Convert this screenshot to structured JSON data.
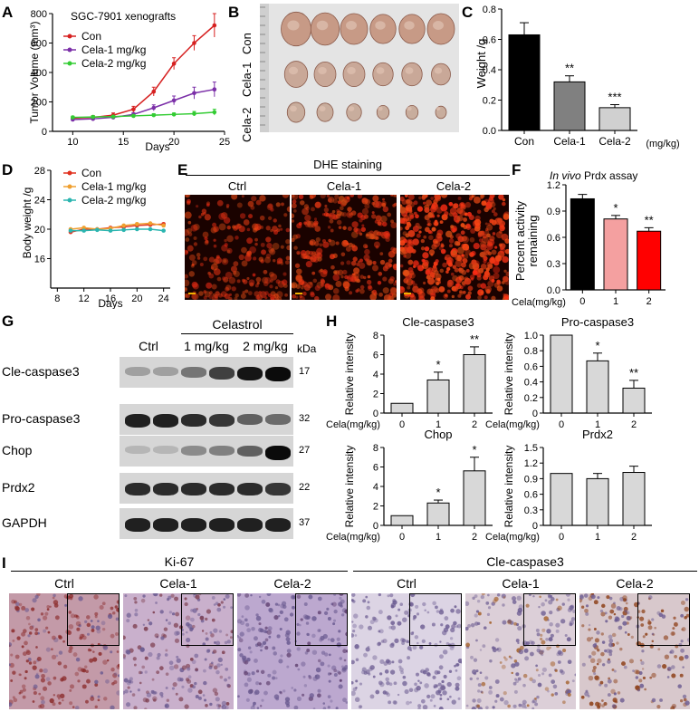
{
  "panels": {
    "A": "A",
    "B": "B",
    "C": "C",
    "D": "D",
    "E": "E",
    "F": "F",
    "G": "G",
    "H": "H",
    "I": "I"
  },
  "panelA": {
    "inset_title": "SGC-7901 xenografts",
    "legend": [
      "Con",
      "Cela-1 mg/kg",
      "Cela-2 mg/kg"
    ],
    "ylabel": "Tumor Volume (mm³)",
    "xlabel": "Days",
    "xticks": [
      "10",
      "15",
      "20",
      "25"
    ],
    "yticks": [
      "0",
      "200",
      "400",
      "600",
      "800"
    ]
  },
  "panelB": {
    "rows": [
      "Con",
      "Cela-1",
      "Cela-2"
    ]
  },
  "panelC": {
    "ylabel": "Weight /g",
    "yticks": [
      "0.0",
      "0.2",
      "0.4",
      "0.6",
      "0.8"
    ],
    "categories": [
      "Con",
      "Cela-1",
      "Cela-2"
    ],
    "unit": "(mg/kg)",
    "sig": [
      "",
      "**",
      "***"
    ]
  },
  "panelD": {
    "legend": [
      "Con",
      "Cela-1 mg/kg",
      "Cela-2 mg/kg"
    ],
    "ylabel": "Body weight /g",
    "xlabel": "Days",
    "xticks": [
      "8",
      "12",
      "16",
      "20",
      "24"
    ],
    "yticks": [
      "16",
      "20",
      "24",
      "28"
    ]
  },
  "panelE": {
    "title": "DHE staining",
    "columns": [
      "Ctrl",
      "Cela-1",
      "Cela-2"
    ]
  },
  "panelF": {
    "title_italic": "In vivo",
    "title_rest": " Prdx assay",
    "ylabel_line1": "Percent activity",
    "ylabel_line2": "remaining",
    "yticks": [
      "0.0",
      "0.3",
      "0.6",
      "0.9",
      "1.2"
    ],
    "xlabel": "Cela(mg/kg)",
    "categories": [
      "0",
      "1",
      "2"
    ],
    "sig": [
      "",
      "*",
      "**"
    ]
  },
  "panelG": {
    "group_label": "Celastrol",
    "columns": [
      "Ctrl",
      "1 mg/kg",
      "2 mg/kg"
    ],
    "kda_label": "kDa",
    "rows": [
      {
        "protein": "Cle-caspase3",
        "kda": "17"
      },
      {
        "protein": "Pro-caspase3",
        "kda": "32"
      },
      {
        "protein": "Chop",
        "kda": "27"
      },
      {
        "protein": "Prdx2",
        "kda": "22"
      },
      {
        "protein": "GAPDH",
        "kda": "37"
      }
    ]
  },
  "panelH": {
    "ylabel": "Relative intensity",
    "xlabel": "Cela(mg/kg)",
    "xcats": [
      "0",
      "1",
      "2"
    ]
  },
  "panelI": {
    "left_title": "Ki-67",
    "right_title": "Cle-caspase3",
    "columns": [
      "Ctrl",
      "Cela-1",
      "Cela-2",
      "Ctrl",
      "Cela-1",
      "Cela-2"
    ]
  },
  "colors": {
    "con": "#d62020",
    "cela1": "#7b2fa8",
    "cela2": "#33cc33",
    "d_con": "#e0301e",
    "d_cela1": "#f0a030",
    "d_cela2": "#2bb5b0",
    "f_bars": [
      "#000000",
      "#f4a0a0",
      "#ff0000"
    ],
    "c_bars": [
      "#000000",
      "#808080",
      "#d0d0d0"
    ]
  },
  "chart_data": [
    {
      "id": "A",
      "type": "line",
      "title": "SGC-7901 xenografts",
      "xlabel": "Days",
      "ylabel": "Tumor Volume (mm³)",
      "xlim": [
        8,
        25
      ],
      "ylim": [
        0,
        800
      ],
      "x": [
        10,
        12,
        14,
        16,
        18,
        20,
        22,
        24
      ],
      "series": [
        {
          "name": "Con",
          "values": [
            90,
            95,
            110,
            150,
            270,
            460,
            600,
            720
          ],
          "err": [
            10,
            12,
            15,
            20,
            30,
            40,
            50,
            80
          ]
        },
        {
          "name": "Cela-1 mg/kg",
          "values": [
            80,
            85,
            95,
            115,
            160,
            210,
            260,
            285
          ],
          "err": [
            8,
            8,
            10,
            12,
            20,
            30,
            40,
            50
          ]
        },
        {
          "name": "Cela-2 mg/kg",
          "values": [
            95,
            98,
            100,
            105,
            110,
            115,
            120,
            130
          ],
          "err": [
            8,
            8,
            8,
            8,
            10,
            10,
            15,
            20
          ]
        }
      ]
    },
    {
      "id": "C",
      "type": "bar",
      "ylabel": "Weight /g",
      "ylim": [
        0,
        0.8
      ],
      "categories": [
        "Con",
        "Cela-1",
        "Cela-2"
      ],
      "values": [
        0.63,
        0.32,
        0.15
      ],
      "err": [
        0.08,
        0.04,
        0.02
      ]
    },
    {
      "id": "D",
      "type": "line",
      "xlabel": "Days",
      "ylabel": "Body weight /g",
      "xlim": [
        7,
        25
      ],
      "ylim": [
        12,
        28
      ],
      "x": [
        10,
        12,
        14,
        16,
        18,
        20,
        22,
        24
      ],
      "series": [
        {
          "name": "Con",
          "values": [
            19.6,
            20.0,
            20.0,
            20.2,
            20.3,
            20.5,
            20.6,
            20.7
          ]
        },
        {
          "name": "Cela-1 mg/kg",
          "values": [
            20.0,
            20.2,
            20.0,
            20.1,
            20.5,
            20.7,
            20.8,
            20.5
          ]
        },
        {
          "name": "Cela-2 mg/kg",
          "values": [
            19.8,
            19.8,
            19.9,
            19.8,
            19.9,
            20.0,
            20.0,
            19.8
          ]
        }
      ]
    },
    {
      "id": "F",
      "type": "bar",
      "ylabel": "Percent activity remaining",
      "xlabel": "Cela(mg/kg)",
      "ylim": [
        0,
        1.2
      ],
      "categories": [
        "0",
        "1",
        "2"
      ],
      "values": [
        1.04,
        0.81,
        0.67
      ],
      "err": [
        0.05,
        0.04,
        0.04
      ]
    },
    {
      "id": "H-Cle-caspase3",
      "type": "bar",
      "title": "Cle-caspase3",
      "ylabel": "Relative intensity",
      "xlabel": "Cela(mg/kg)",
      "ylim": [
        0,
        8
      ],
      "yticks": [
        0,
        2,
        4,
        6,
        8
      ],
      "categories": [
        "0",
        "1",
        "2"
      ],
      "values": [
        1.0,
        3.4,
        6.0
      ],
      "err": [
        0,
        0.8,
        0.8
      ],
      "sig": [
        "",
        "*",
        "**"
      ]
    },
    {
      "id": "H-Pro-caspase3",
      "type": "bar",
      "title": "Pro-caspase3",
      "ylabel": "Relative intensity",
      "xlabel": "Cela(mg/kg)",
      "ylim": [
        0,
        1.0
      ],
      "yticks": [
        0,
        0.2,
        0.4,
        0.6,
        0.8,
        1.0
      ],
      "categories": [
        "0",
        "1",
        "2"
      ],
      "values": [
        1.0,
        0.67,
        0.32
      ],
      "err": [
        0,
        0.1,
        0.1
      ],
      "sig": [
        "",
        "*",
        "**"
      ]
    },
    {
      "id": "H-Chop",
      "type": "bar",
      "title": "Chop",
      "ylabel": "Relative intensity",
      "xlabel": "Cela(mg/kg)",
      "ylim": [
        0,
        8
      ],
      "yticks": [
        0,
        2,
        4,
        6,
        8
      ],
      "categories": [
        "0",
        "1",
        "2"
      ],
      "values": [
        1.0,
        2.3,
        5.6
      ],
      "err": [
        0,
        0.3,
        1.4
      ],
      "sig": [
        "",
        "*",
        "*"
      ]
    },
    {
      "id": "H-Prdx2",
      "type": "bar",
      "title": "Prdx2",
      "ylabel": "Relative intensity",
      "xlabel": "Cela(mg/kg)",
      "ylim": [
        0,
        1.5
      ],
      "yticks": [
        0,
        0.3,
        0.6,
        0.9,
        1.2,
        1.5
      ],
      "categories": [
        "0",
        "1",
        "2"
      ],
      "values": [
        1.0,
        0.9,
        1.02
      ],
      "err": [
        0,
        0.1,
        0.12
      ],
      "sig": [
        "",
        "",
        ""
      ]
    }
  ]
}
